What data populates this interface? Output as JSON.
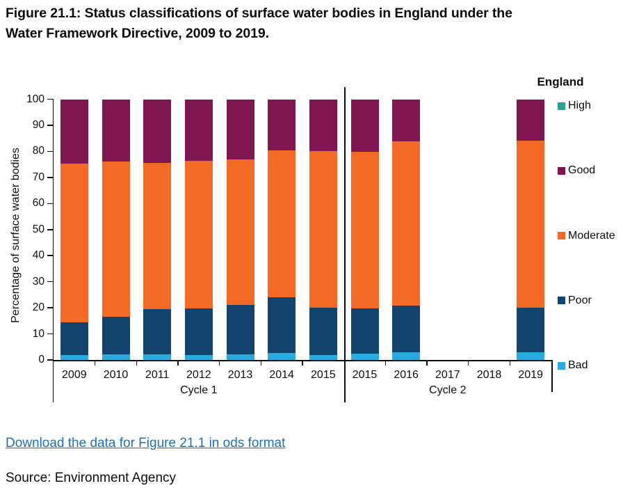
{
  "figure": {
    "title_lines": [
      "Figure 21.1: Status classifications of surface water bodies in England under the",
      "Water Framework Directive, 2009 to 2019."
    ],
    "download_link_label": "Download the data for Figure 21.1 in ods format",
    "source": "Source: Environment Agency"
  },
  "colors": {
    "link_blue": "#1d70b8",
    "text": "#0b0c0c",
    "axis": "#0b0c0c"
  },
  "chart_data": {
    "type": "bar",
    "stacked": true,
    "ylabel": "Percentage of surface water bodies",
    "ylim": [
      0,
      100
    ],
    "yticks": [
      0,
      10,
      20,
      30,
      40,
      50,
      60,
      70,
      80,
      90,
      100
    ],
    "grid": false,
    "legend_position": "right",
    "group_labels": [
      "Cycle 1",
      "Cycle 2"
    ],
    "categories": [
      {
        "label": "2009",
        "group": "Cycle 1"
      },
      {
        "label": "2010",
        "group": "Cycle 1"
      },
      {
        "label": "2011",
        "group": "Cycle 1"
      },
      {
        "label": "2012",
        "group": "Cycle 1"
      },
      {
        "label": "2013",
        "group": "Cycle 1"
      },
      {
        "label": "2014",
        "group": "Cycle 1"
      },
      {
        "label": "2015",
        "group": "Cycle 1"
      },
      {
        "label": "2015",
        "group": "Cycle 2"
      },
      {
        "label": "2016",
        "group": "Cycle 2"
      },
      {
        "label": "2017",
        "group": "Cycle 2"
      },
      {
        "label": "2018",
        "group": "Cycle 2"
      },
      {
        "label": "2019",
        "group": "Cycle 2"
      }
    ],
    "series": [
      {
        "name": "Bad",
        "color": "#29ABE2",
        "values": [
          2.0,
          2.2,
          2.1,
          1.8,
          2.2,
          2.8,
          2.0,
          2.3,
          3.0,
          null,
          null,
          3.0
        ]
      },
      {
        "name": "Poor",
        "color": "#12436D",
        "values": [
          12.5,
          14.4,
          17.4,
          18.0,
          19.0,
          21.2,
          17.9,
          17.5,
          17.8,
          null,
          null,
          17.0
        ]
      },
      {
        "name": "Moderate",
        "color": "#F46A25",
        "values": [
          60.7,
          59.4,
          56.0,
          56.6,
          55.8,
          56.4,
          60.3,
          60.0,
          63.0,
          null,
          null,
          64.0
        ]
      },
      {
        "name": "Good",
        "color": "#801650",
        "values": [
          24.8,
          24.0,
          24.5,
          23.6,
          23.0,
          19.6,
          19.8,
          20.2,
          16.2,
          null,
          null,
          16.0
        ]
      },
      {
        "name": "High",
        "color": "#28A197",
        "values": [
          0,
          0,
          0,
          0,
          0,
          0,
          0,
          0,
          0,
          null,
          null,
          0
        ]
      }
    ],
    "legend": {
      "title": "England",
      "items": [
        "High",
        "Good",
        "Moderate",
        "Poor",
        "Bad"
      ]
    }
  }
}
